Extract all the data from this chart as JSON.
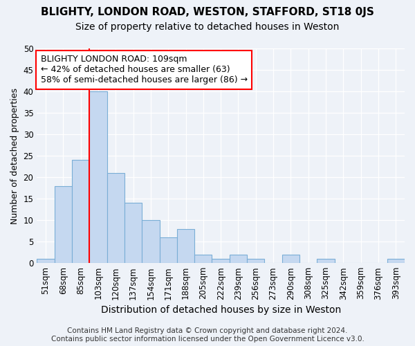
{
  "title1": "BLIGHTY, LONDON ROAD, WESTON, STAFFORD, ST18 0JS",
  "title2": "Size of property relative to detached houses in Weston",
  "xlabel": "Distribution of detached houses by size in Weston",
  "ylabel": "Number of detached properties",
  "footer1": "Contains HM Land Registry data © Crown copyright and database right 2024.",
  "footer2": "Contains public sector information licensed under the Open Government Licence v3.0.",
  "categories": [
    "51sqm",
    "68sqm",
    "85sqm",
    "103sqm",
    "120sqm",
    "137sqm",
    "154sqm",
    "171sqm",
    "188sqm",
    "205sqm",
    "222sqm",
    "239sqm",
    "256sqm",
    "273sqm",
    "290sqm",
    "308sqm",
    "325sqm",
    "342sqm",
    "359sqm",
    "376sqm",
    "393sqm"
  ],
  "values": [
    1,
    18,
    24,
    40,
    21,
    14,
    10,
    6,
    8,
    2,
    1,
    2,
    1,
    0,
    2,
    0,
    1,
    0,
    0,
    0,
    1
  ],
  "bar_color": "#c5d8f0",
  "bar_edge_color": "#7aaed6",
  "annotation_line1": "BLIGHTY LONDON ROAD: 109sqm",
  "annotation_line2": "← 42% of detached houses are smaller (63)",
  "annotation_line3": "58% of semi-detached houses are larger (86) →",
  "annotation_box_color": "white",
  "annotation_box_edge": "red",
  "vline_color": "red",
  "vline_pos": 2.5,
  "ylim": [
    0,
    50
  ],
  "yticks": [
    0,
    5,
    10,
    15,
    20,
    25,
    30,
    35,
    40,
    45,
    50
  ],
  "bg_color": "#eef2f8",
  "plot_bg_color": "#eef2f8",
  "title1_fontsize": 11,
  "title2_fontsize": 10,
  "ylabel_fontsize": 9,
  "xlabel_fontsize": 10,
  "tick_fontsize": 8.5,
  "footer_fontsize": 7.5,
  "annot_fontsize": 9
}
